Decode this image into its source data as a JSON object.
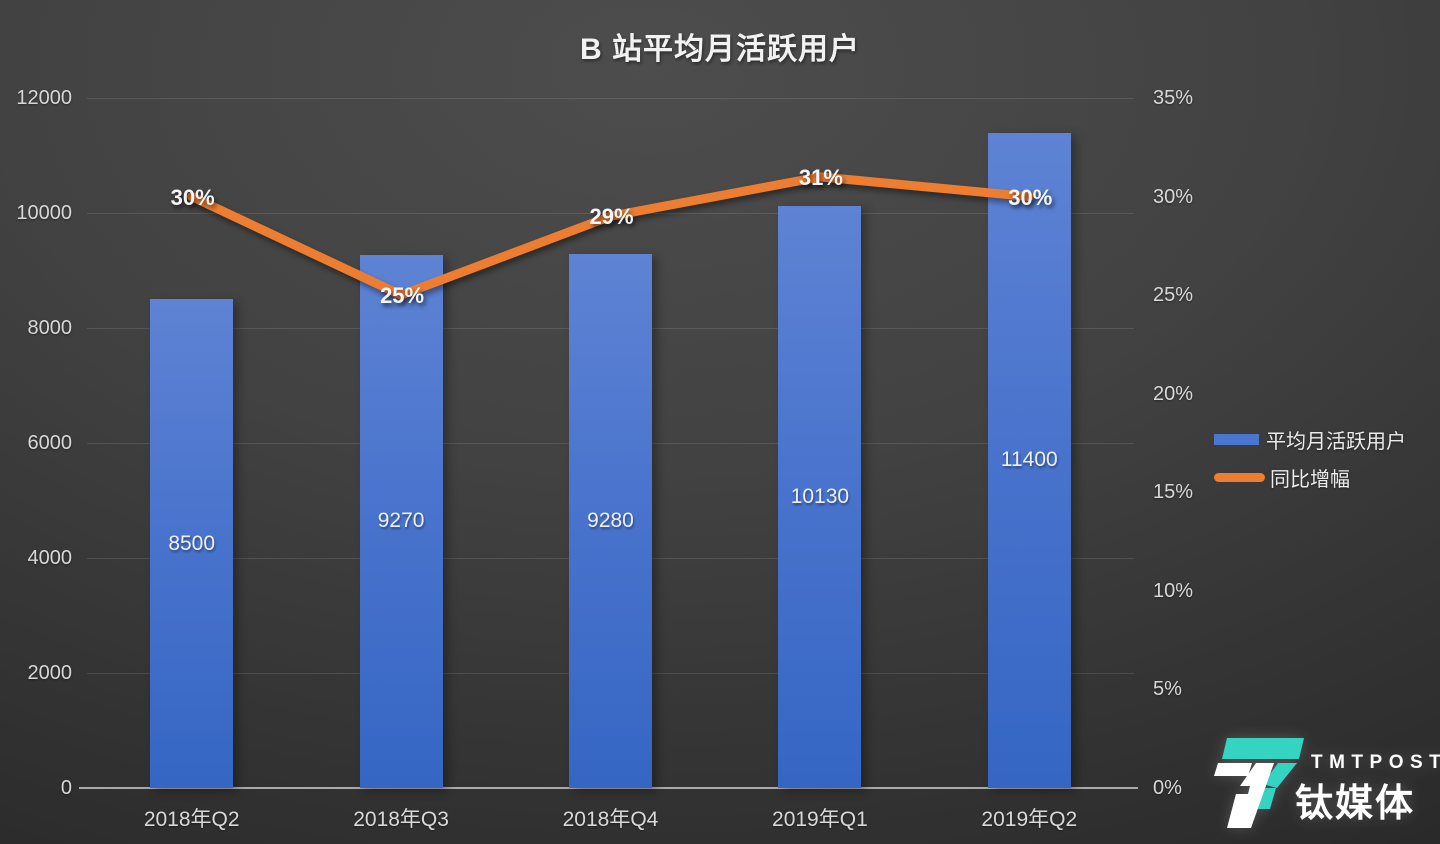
{
  "chart_data": {
    "type": "bar+line combo",
    "title": "B 站平均月活跃用户",
    "categories": [
      "2018年Q2",
      "2018年Q3",
      "2018年Q4",
      "2019年Q1",
      "2019年Q2"
    ],
    "series": [
      {
        "name": "平均月活跃用户",
        "type": "bar",
        "axis": "left",
        "values": [
          8500,
          9270,
          9280,
          10130,
          11400
        ],
        "data_labels": [
          "8500",
          "9270",
          "9280",
          "10130",
          "11400"
        ],
        "color": "#4a76d0"
      },
      {
        "name": "同比增幅",
        "type": "line",
        "axis": "right",
        "values": [
          30,
          25,
          29,
          31,
          30
        ],
        "data_labels": [
          "30%",
          "25%",
          "29%",
          "31%",
          "30%"
        ],
        "color": "#ED7D31"
      }
    ],
    "left_axis": {
      "min": 0,
      "max": 12000,
      "step": 2000,
      "ticks": [
        "0",
        "2000",
        "4000",
        "6000",
        "8000",
        "10000",
        "12000"
      ]
    },
    "right_axis": {
      "min": 0,
      "max": 35,
      "step": 5,
      "ticks": [
        "0%",
        "5%",
        "10%",
        "15%",
        "20%",
        "25%",
        "30%",
        "35%"
      ]
    },
    "grid": true,
    "legend_position": "right"
  },
  "legend": {
    "items": [
      {
        "label": "平均月活跃用户",
        "swatch": "bar",
        "color": "#4a76d0"
      },
      {
        "label": "同比增幅",
        "swatch": "line",
        "color": "#ED7D31"
      }
    ]
  },
  "watermark": {
    "brand_en": "TMTPOST",
    "brand_cn": "钛媒体",
    "accent_color": "#35d3c1"
  },
  "colors": {
    "bar_top": "#5e83d4",
    "bar_bottom": "#3566c4",
    "line": "#ED7D31",
    "title_text": "#f2f2f2",
    "tick_text": "#d8d8d8",
    "logo_teal": "#35d3c1"
  }
}
